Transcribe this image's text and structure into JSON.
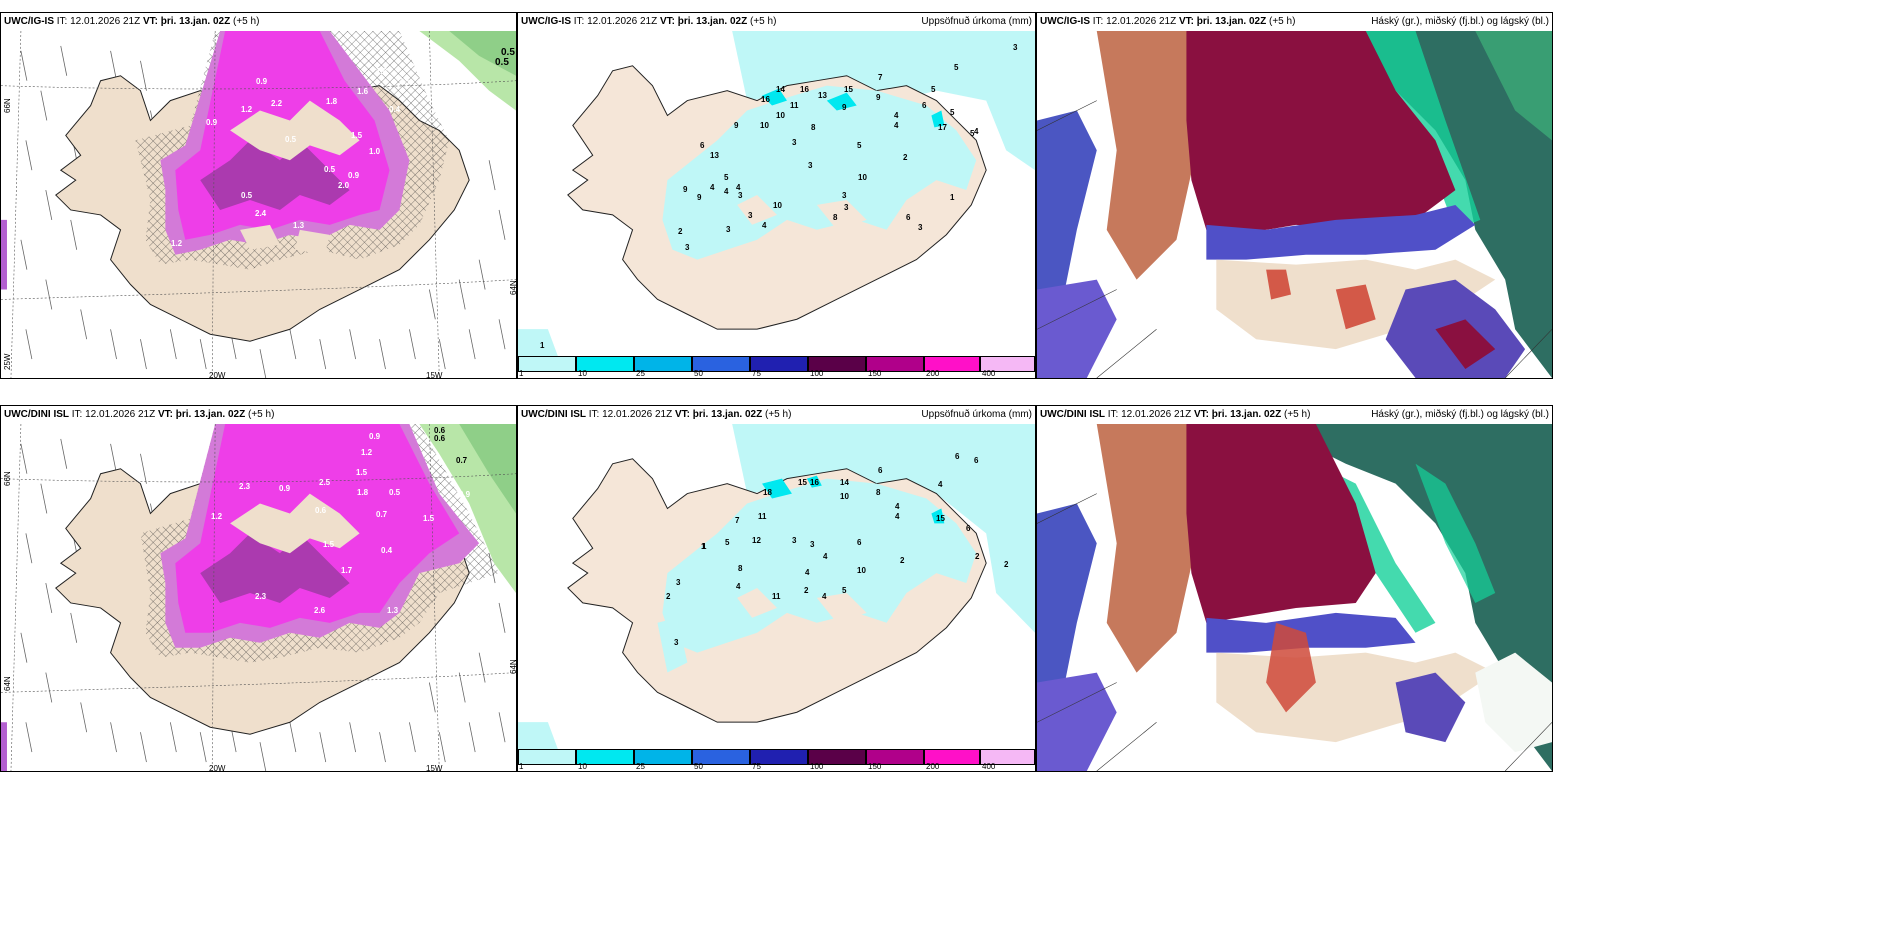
{
  "panels": [
    {
      "model": "UWC/IG-IS",
      "it": "IT: 12.01.2026 21Z",
      "vt": "VT: þri. 13.jan. 02Z",
      "lead": "(+5 h)",
      "title": ""
    },
    {
      "model": "UWC/IG-IS",
      "it": "IT: 12.01.2026 21Z",
      "vt": "VT: þri. 13.jan. 02Z",
      "lead": "(+5 h)",
      "title": "Uppsöfnuð úrkoma (mm)"
    },
    {
      "model": "UWC/IG-IS",
      "it": "IT: 12.01.2026 21Z",
      "vt": "VT: þri. 13.jan. 02Z",
      "lead": "(+5 h)",
      "title": "Háský (gr.), miðský (fj.bl.) og lágský (bl.)"
    },
    {
      "model": "UWC/DINI ISL",
      "it": "IT: 12.01.2026 21Z",
      "vt": "VT: þri. 13.jan. 02Z",
      "lead": "(+5 h)",
      "title": ""
    },
    {
      "model": "UWC/DINI ISL",
      "it": "IT: 12.01.2026 21Z",
      "vt": "VT: þri. 13.jan. 02Z",
      "lead": "(+5 h)",
      "title": "Uppsöfnuð úrkoma (mm)"
    },
    {
      "model": "UWC/DINI ISL",
      "it": "IT: 12.01.2026 21Z",
      "vt": "VT: þri. 13.jan. 02Z",
      "lead": "(+5 h)",
      "title": "Háský (gr.), miðský (fj.bl.) og lágský (bl.)"
    }
  ],
  "axis_labels": {
    "lat66": "66N",
    "lat64": "64N",
    "lon20": "20W",
    "lon15": "15W",
    "lon25": "25W"
  },
  "colorbar": {
    "ticks": [
      "1",
      "10",
      "25",
      "50",
      "75",
      "100",
      "150",
      "200",
      "400"
    ],
    "colors": [
      "#bff7f7",
      "#00e8f0",
      "#00b4e8",
      "#2a62e0",
      "#2020b0",
      "#5a0048",
      "#b0008a",
      "#ff10c8",
      "#f5b8f5"
    ]
  },
  "precip_top": [
    "3",
    "5",
    "7",
    "5",
    "9",
    "6",
    "5",
    "4",
    "4",
    "5",
    "16",
    "14",
    "16",
    "13",
    "15",
    "9",
    "11",
    "10",
    "10",
    "9",
    "8",
    "3",
    "5",
    "6",
    "13",
    "17",
    "4",
    "2",
    "3",
    "10",
    "3",
    "5",
    "1",
    "8",
    "6",
    "3",
    "4",
    "4",
    "9",
    "4",
    "3",
    "10",
    "9",
    "3",
    "4",
    "2",
    "3",
    "1",
    "3",
    "3"
  ],
  "precip_bottom": [
    "6",
    "6",
    "4",
    "6",
    "14",
    "10",
    "8",
    "18",
    "15",
    "16",
    "4",
    "4",
    "11",
    "7",
    "12",
    "3",
    "5",
    "1",
    "3",
    "6",
    "4",
    "2",
    "10",
    "8",
    "4",
    "2",
    "3",
    "11",
    "5",
    "4",
    "4",
    "2",
    "15",
    "6",
    "2",
    "3",
    "1",
    "2"
  ],
  "snow_top": [
    "0.5",
    "0.5",
    "2.5",
    "0.7",
    "1.8",
    "1.6",
    "0.4",
    "1.8",
    "0.9",
    "0.3",
    "2.2",
    "1.2",
    "0.5",
    "0.9",
    "1.5",
    "1.0",
    "0.5",
    "2.4",
    "0.9",
    "1.3",
    "2.0",
    "0.5",
    "1.2"
  ],
  "snow_bottom": [
    "0.6",
    "0.6",
    "0.7",
    "1.2",
    "2.5",
    "0.9",
    "1.5",
    "1.8",
    "0.5",
    "2.3",
    "0.9",
    "1.5",
    "0.6",
    "0.7",
    "1.7",
    "2.6",
    "0.4",
    "1.2",
    "2.3",
    "1.3",
    "0.9",
    "1.5"
  ]
}
